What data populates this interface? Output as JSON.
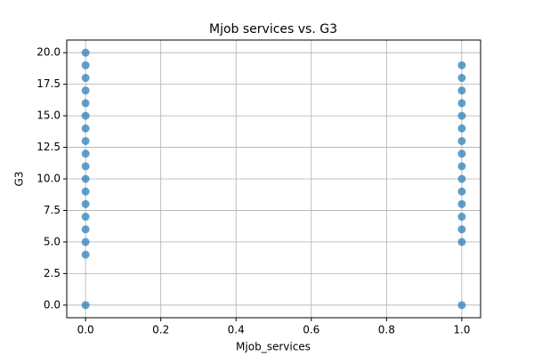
{
  "chart_data": {
    "type": "scatter",
    "title": "Mjob services vs. G3",
    "x_label": "Mjob_services",
    "y_label": "G3",
    "x": [
      0,
      0,
      0,
      0,
      0,
      0,
      0,
      0,
      0,
      0,
      0,
      0,
      0,
      0,
      0,
      0,
      0,
      0,
      1,
      1,
      1,
      1,
      1,
      1,
      1,
      1,
      1,
      1,
      1,
      1,
      1,
      1,
      1,
      1
    ],
    "values": [
      0,
      4,
      5,
      6,
      7,
      8,
      9,
      10,
      11,
      12,
      13,
      14,
      15,
      16,
      17,
      18,
      19,
      20,
      0,
      5,
      6,
      7,
      8,
      9,
      10,
      11,
      12,
      13,
      14,
      15,
      16,
      17,
      18,
      19
    ],
    "color": "#1f77b4",
    "xlim": [
      -0.05,
      1.05
    ],
    "xticks": [
      {
        "value": 0,
        "label": "0.0"
      },
      0.2,
      0.4,
      0.6,
      0.8,
      {
        "value": 1,
        "label": "1.0"
      }
    ],
    "ylim": [
      -1,
      21
    ],
    "yticks": [
      {
        "value": 0,
        "label": "0.0"
      },
      2.5,
      {
        "value": 5,
        "label": "5.0"
      },
      7.5,
      {
        "value": 10,
        "label": "10.0"
      },
      12.5,
      {
        "value": 15,
        "label": "15.0"
      },
      17.5,
      {
        "value": 20,
        "label": "20.0"
      }
    ],
    "grid": true
  }
}
